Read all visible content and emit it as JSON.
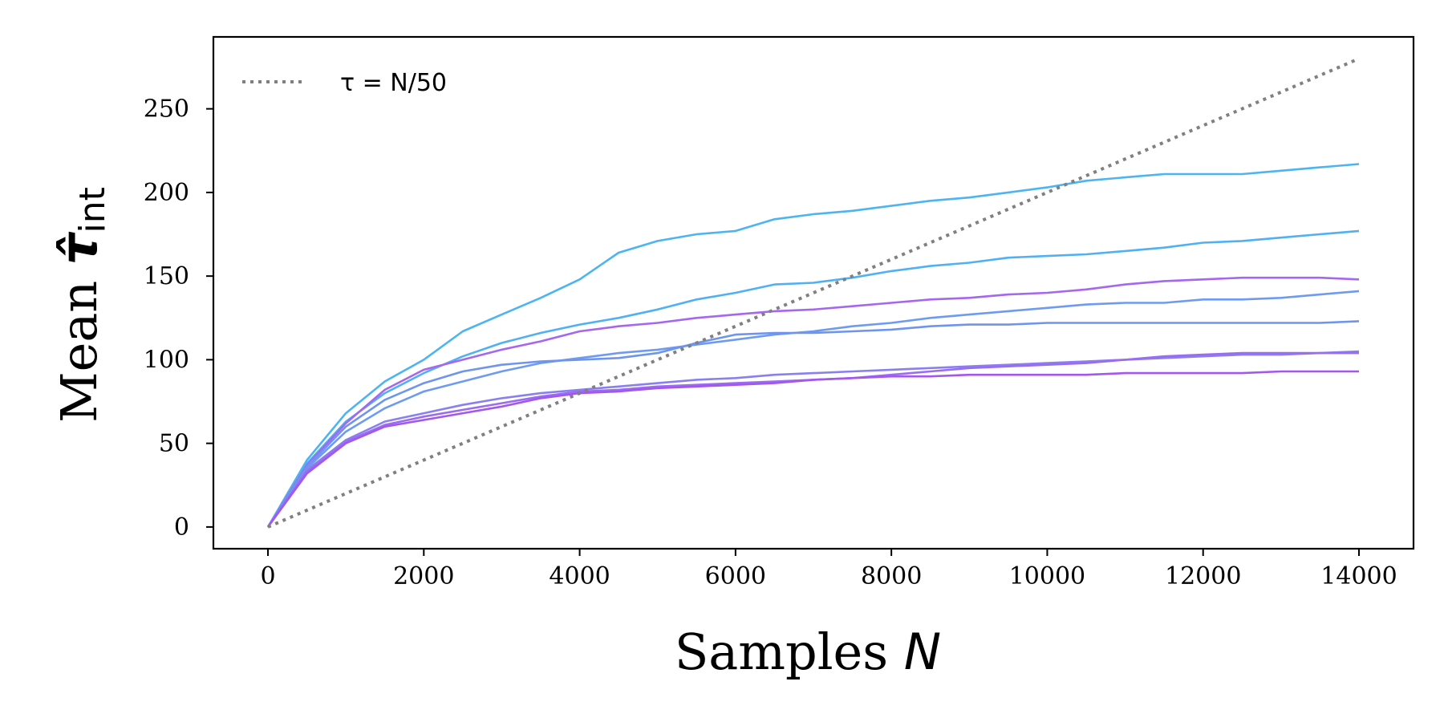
{
  "chart_data": {
    "type": "line",
    "xlabel": {
      "text": "Samples ",
      "var": "N"
    },
    "ylabel": {
      "text": "Mean ",
      "symbol": "τ̂",
      "sub": "int"
    },
    "xlim": [
      -700,
      14700
    ],
    "ylim": [
      -13,
      293
    ],
    "xticks": [
      "0",
      "2000",
      "4000",
      "6000",
      "8000",
      "10000",
      "12000",
      "14000"
    ],
    "xtick_values": [
      0,
      2000,
      4000,
      6000,
      8000,
      10000,
      12000,
      14000
    ],
    "yticks": [
      "0",
      "50",
      "100",
      "150",
      "200",
      "250"
    ],
    "ytick_values": [
      0,
      50,
      100,
      150,
      200,
      250
    ],
    "grid": false,
    "legend_position": "top-left",
    "reference_line": {
      "label": "τ = N/50",
      "slope": 0.02,
      "x": [
        0,
        14000
      ],
      "color": "#808080",
      "style": "dotted"
    },
    "x": [
      0,
      500,
      1000,
      1500,
      2000,
      2500,
      3000,
      3500,
      4000,
      4500,
      5000,
      5500,
      6000,
      6500,
      7000,
      7500,
      8000,
      8500,
      9000,
      9500,
      10000,
      10500,
      11000,
      11500,
      12000,
      12500,
      13000,
      13500,
      14000
    ],
    "series": [
      {
        "color": "#4db4f2",
        "values": [
          0,
          40,
          68,
          87,
          100,
          117,
          127,
          137,
          148,
          164,
          171,
          175,
          177,
          184,
          187,
          189,
          192,
          195,
          197,
          200,
          203,
          207,
          209,
          211,
          211,
          211,
          213,
          215,
          217
        ]
      },
      {
        "color": "#50b0f4",
        "values": [
          0,
          38,
          63,
          80,
          92,
          102,
          110,
          116,
          121,
          125,
          130,
          136,
          140,
          145,
          146,
          149,
          153,
          156,
          158,
          161,
          162,
          163,
          165,
          167,
          170,
          171,
          173,
          175,
          177
        ]
      },
      {
        "color": "#a566f0",
        "values": [
          0,
          37,
          62,
          82,
          94,
          100,
          106,
          111,
          117,
          120,
          122,
          125,
          127,
          129,
          130,
          132,
          134,
          136,
          137,
          139,
          140,
          142,
          145,
          147,
          148,
          149,
          149,
          149,
          148
        ]
      },
      {
        "color": "#6e9bf2",
        "values": [
          0,
          35,
          57,
          71,
          81,
          87,
          93,
          98,
          101,
          104,
          106,
          109,
          112,
          115,
          117,
          120,
          122,
          125,
          127,
          129,
          131,
          133,
          134,
          134,
          136,
          136,
          137,
          139,
          141
        ]
      },
      {
        "color": "#6f94f0",
        "values": [
          0,
          36,
          60,
          76,
          86,
          93,
          97,
          99,
          100,
          101,
          104,
          110,
          115,
          116,
          116,
          117,
          118,
          120,
          121,
          121,
          122,
          122,
          122,
          122,
          122,
          122,
          122,
          122,
          123
        ]
      },
      {
        "color": "#8a7ff0",
        "values": [
          0,
          34,
          52,
          63,
          68,
          73,
          77,
          80,
          82,
          84,
          86,
          88,
          89,
          91,
          92,
          93,
          94,
          95,
          96,
          97,
          98,
          99,
          100,
          101,
          102,
          103,
          103,
          104,
          105
        ]
      },
      {
        "color": "#9a6cf0",
        "values": [
          0,
          33,
          51,
          61,
          66,
          70,
          74,
          78,
          81,
          82,
          84,
          85,
          86,
          87,
          88,
          89,
          91,
          93,
          95,
          96,
          97,
          98,
          100,
          102,
          103,
          104,
          104,
          104,
          104
        ]
      },
      {
        "color": "#a357f0",
        "values": [
          0,
          32,
          50,
          60,
          64,
          68,
          72,
          77,
          80,
          81,
          83,
          84,
          85,
          86,
          88,
          89,
          90,
          90,
          91,
          91,
          91,
          91,
          92,
          92,
          92,
          92,
          93,
          93,
          93
        ]
      }
    ]
  }
}
